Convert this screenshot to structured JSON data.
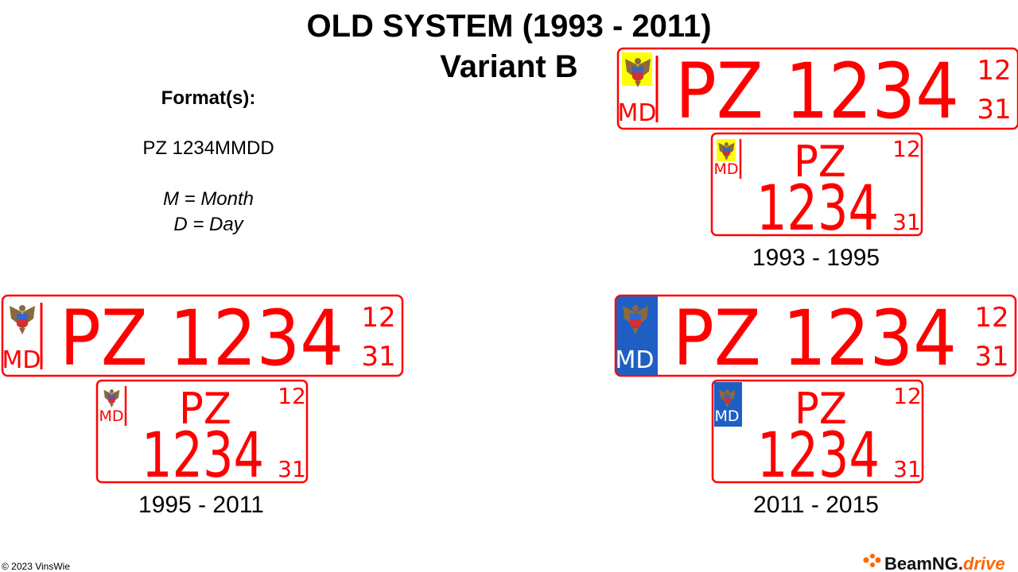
{
  "header": {
    "title": "OLD SYSTEM (1993 - 2011)",
    "subtitle": "Variant B"
  },
  "format": {
    "label": "Format(s):",
    "value": "PZ 1234MMDD",
    "legend": [
      "M = Month",
      "D = Day"
    ]
  },
  "groups": [
    {
      "caption": "1993 - 1995",
      "style": "yellow-emblem",
      "long": {
        "country": "MD",
        "registration": "PZ 1234",
        "month": "12",
        "day": "31"
      },
      "short": {
        "country": "MD",
        "series": "PZ",
        "number": "1234",
        "month": "12",
        "day": "31"
      }
    },
    {
      "caption": "1995 - 2011",
      "style": "plain",
      "long": {
        "country": "MD",
        "registration": "PZ 1234",
        "month": "12",
        "day": "31"
      },
      "short": {
        "country": "MD",
        "series": "PZ",
        "number": "1234",
        "month": "12",
        "day": "31"
      }
    },
    {
      "caption": "2011 - 2015",
      "style": "blue-band",
      "long": {
        "country": "MD",
        "registration": "PZ 1234",
        "month": "12",
        "day": "31"
      },
      "short": {
        "country": "MD",
        "series": "PZ",
        "number": "1234",
        "month": "12",
        "day": "31"
      }
    }
  ],
  "footer": {
    "copyright": "© 2023 VinsWie",
    "logo": {
      "brand": "BeamNG.",
      "product": "drive"
    }
  }
}
